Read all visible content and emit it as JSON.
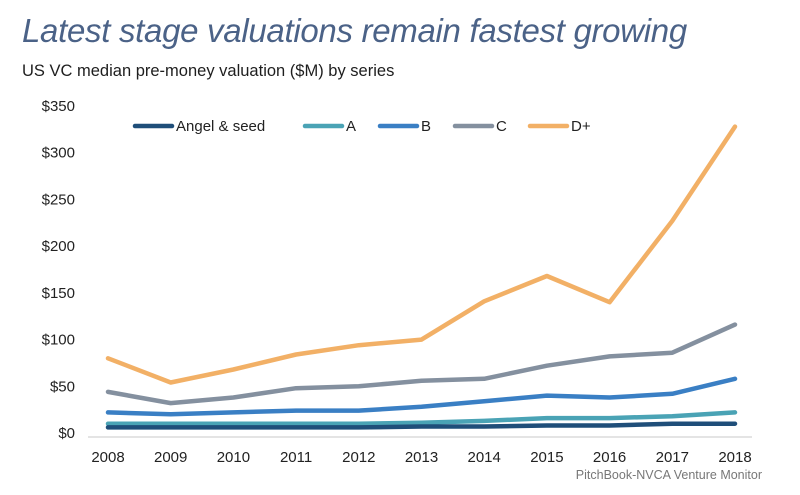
{
  "chart_data": {
    "type": "line",
    "title": "Latest stage valuations remain fastest growing",
    "subtitle": "US VC median pre-money valuation ($M) by series",
    "xlabel": "",
    "ylabel": "",
    "x": [
      "2008",
      "2009",
      "2010",
      "2011",
      "2012",
      "2013",
      "2014",
      "2015",
      "2016",
      "2017",
      "2018"
    ],
    "ylim": [
      0,
      350
    ],
    "yticks": [
      0,
      50,
      100,
      150,
      200,
      250,
      300,
      350
    ],
    "ytick_labels": [
      "$0",
      "$50",
      "$100",
      "$150",
      "$200",
      "$250",
      "$300",
      "$350"
    ],
    "grid": false,
    "legend_position": "top",
    "series": [
      {
        "name": "Angel & seed",
        "color": "#1f4e79",
        "values": [
          6,
          6,
          6,
          6,
          6,
          7,
          7,
          8,
          8,
          10,
          10
        ]
      },
      {
        "name": "A",
        "color": "#4aa3b5",
        "values": [
          10,
          10,
          10,
          10,
          10,
          11,
          13,
          16,
          16,
          18,
          22
        ]
      },
      {
        "name": "B",
        "color": "#3a7fc4",
        "values": [
          22,
          20,
          22,
          24,
          24,
          28,
          34,
          40,
          38,
          42,
          58
        ]
      },
      {
        "name": "C",
        "color": "#84909f",
        "values": [
          44,
          32,
          38,
          48,
          50,
          56,
          58,
          72,
          82,
          86,
          116
        ]
      },
      {
        "name": "D+",
        "color": "#f2b066",
        "values": [
          80,
          54,
          68,
          84,
          94,
          100,
          141,
          168,
          140,
          227,
          328
        ]
      }
    ],
    "source": "PitchBook-NVCA Venture Monitor"
  }
}
